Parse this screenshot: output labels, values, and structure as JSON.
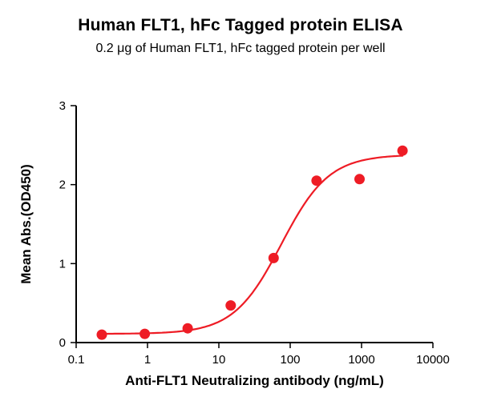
{
  "page": {
    "title": "Human FLT1, hFc Tagged protein ELISA",
    "subtitle": "0.2 μg of Human FLT1, hFc tagged protein per well"
  },
  "chart_data": {
    "type": "scatter",
    "title": "Human FLT1, hFc Tagged protein ELISA",
    "subtitle": "0.2 μg of Human FLT1, hFc tagged protein per well",
    "xlabel": "Anti-FLT1 Neutralizing antibody (ng/mL)",
    "ylabel": "Mean Abs.(OD450)",
    "x_scale": "log10",
    "xlim": [
      0.1,
      10000
    ],
    "ylim": [
      0,
      3
    ],
    "x_ticks": [
      0.1,
      1,
      10,
      100,
      1000,
      10000
    ],
    "x_tick_labels": [
      "0.1",
      "1",
      "10",
      "100",
      "1000",
      "10000"
    ],
    "y_ticks": [
      0,
      1,
      2,
      3
    ],
    "y_tick_labels": [
      "0",
      "1",
      "2",
      "3"
    ],
    "grid": false,
    "legend": "none",
    "point_color": "#EE1C25",
    "series": [
      {
        "name": "Anti-FLT1 neutralizing antibody",
        "color": "#EE1C25",
        "x": [
          0.229,
          0.916,
          3.66,
          14.65,
          58.6,
          234.4,
          937.5,
          3750
        ],
        "y": [
          0.1,
          0.11,
          0.18,
          0.47,
          1.07,
          2.05,
          2.07,
          2.43
        ]
      }
    ],
    "fit_curve": {
      "model": "4PL",
      "bottom": 0.11,
      "top": 2.38,
      "ec50": 75,
      "hill": 1.3,
      "x_start": 0.229,
      "x_end": 3750,
      "color": "#EE1C25"
    }
  }
}
